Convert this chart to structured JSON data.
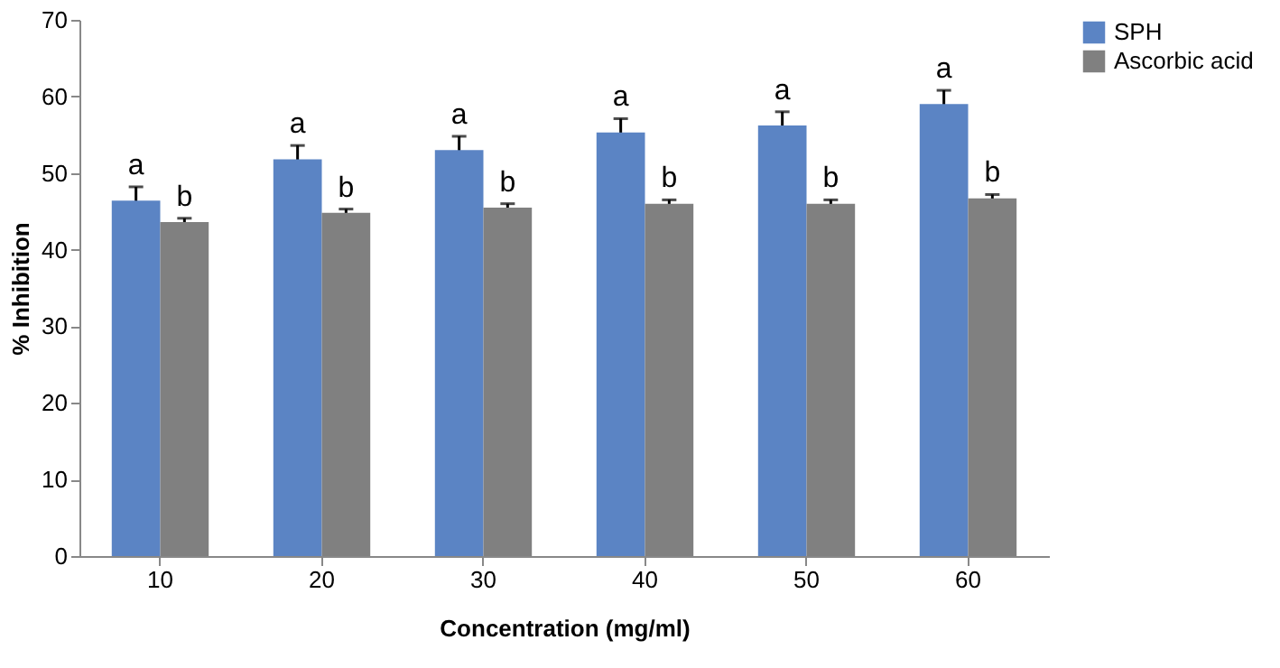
{
  "chart_data": {
    "type": "bar",
    "xlabel": "Concentration (mg/ml)",
    "ylabel": "% Inhibition",
    "categories": [
      "10",
      "20",
      "30",
      "40",
      "50",
      "60"
    ],
    "series": [
      {
        "name": "SPH",
        "color": "#5b84c4",
        "values": [
          46.4,
          51.8,
          53.0,
          55.3,
          56.2,
          59.0
        ],
        "errors": [
          1.8,
          1.8,
          1.8,
          1.8,
          1.8,
          1.8
        ],
        "value_labels": [
          "a",
          "a",
          "a",
          "a",
          "a",
          "a"
        ]
      },
      {
        "name": "Ascorbic acid",
        "color": "#808080",
        "values": [
          43.6,
          44.8,
          45.5,
          46.0,
          46.0,
          46.7
        ],
        "errors": [
          0.5,
          0.5,
          0.5,
          0.5,
          0.5,
          0.5
        ],
        "value_labels": [
          "b",
          "b",
          "b",
          "b",
          "b",
          "b"
        ]
      }
    ],
    "ylim": [
      0,
      70
    ],
    "yticks": [
      0,
      10,
      20,
      30,
      40,
      50,
      60,
      70
    ],
    "grid": false,
    "legend": "right"
  }
}
